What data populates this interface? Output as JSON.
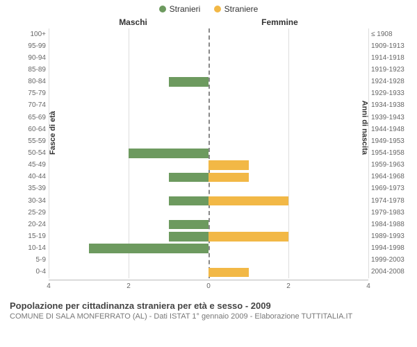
{
  "legend": {
    "male": {
      "label": "Stranieri",
      "color": "#6d9a5f"
    },
    "female": {
      "label": "Straniere",
      "color": "#f2b846"
    }
  },
  "chart": {
    "type": "population-pyramid",
    "title_left": "Maschi",
    "title_right": "Femmine",
    "y_title_left": "Fasce di età",
    "y_title_right": "Anni di nascita",
    "x_max": 4,
    "x_ticks_left": [
      4,
      2,
      0
    ],
    "x_ticks_right": [
      0,
      2,
      4
    ],
    "bar_colors": {
      "male": "#6d9a5f",
      "female": "#f2b846"
    },
    "grid_color": "#dddddd",
    "zero_line_color": "#888888",
    "background": "#ffffff",
    "label_fontsize": 10,
    "rows": [
      {
        "age": "100+",
        "years": "≤ 1908",
        "m": 0,
        "f": 0
      },
      {
        "age": "95-99",
        "years": "1909-1913",
        "m": 0,
        "f": 0
      },
      {
        "age": "90-94",
        "years": "1914-1918",
        "m": 0,
        "f": 0
      },
      {
        "age": "85-89",
        "years": "1919-1923",
        "m": 0,
        "f": 0
      },
      {
        "age": "80-84",
        "years": "1924-1928",
        "m": 1,
        "f": 0
      },
      {
        "age": "75-79",
        "years": "1929-1933",
        "m": 0,
        "f": 0
      },
      {
        "age": "70-74",
        "years": "1934-1938",
        "m": 0,
        "f": 0
      },
      {
        "age": "65-69",
        "years": "1939-1943",
        "m": 0,
        "f": 0
      },
      {
        "age": "60-64",
        "years": "1944-1948",
        "m": 0,
        "f": 0
      },
      {
        "age": "55-59",
        "years": "1949-1953",
        "m": 0,
        "f": 0
      },
      {
        "age": "50-54",
        "years": "1954-1958",
        "m": 2,
        "f": 0
      },
      {
        "age": "45-49",
        "years": "1959-1963",
        "m": 0,
        "f": 1
      },
      {
        "age": "40-44",
        "years": "1964-1968",
        "m": 1,
        "f": 1
      },
      {
        "age": "35-39",
        "years": "1969-1973",
        "m": 0,
        "f": 0
      },
      {
        "age": "30-34",
        "years": "1974-1978",
        "m": 1,
        "f": 2
      },
      {
        "age": "25-29",
        "years": "1979-1983",
        "m": 0,
        "f": 0
      },
      {
        "age": "20-24",
        "years": "1984-1988",
        "m": 1,
        "f": 0
      },
      {
        "age": "15-19",
        "years": "1989-1993",
        "m": 1,
        "f": 2
      },
      {
        "age": "10-14",
        "years": "1994-1998",
        "m": 3,
        "f": 0
      },
      {
        "age": "5-9",
        "years": "1999-2003",
        "m": 0,
        "f": 0
      },
      {
        "age": "0-4",
        "years": "2004-2008",
        "m": 0,
        "f": 1
      }
    ]
  },
  "footer": {
    "title": "Popolazione per cittadinanza straniera per età e sesso - 2009",
    "sub": "COMUNE DI SALA MONFERRATO (AL) - Dati ISTAT 1° gennaio 2009 - Elaborazione TUTTITALIA.IT"
  }
}
